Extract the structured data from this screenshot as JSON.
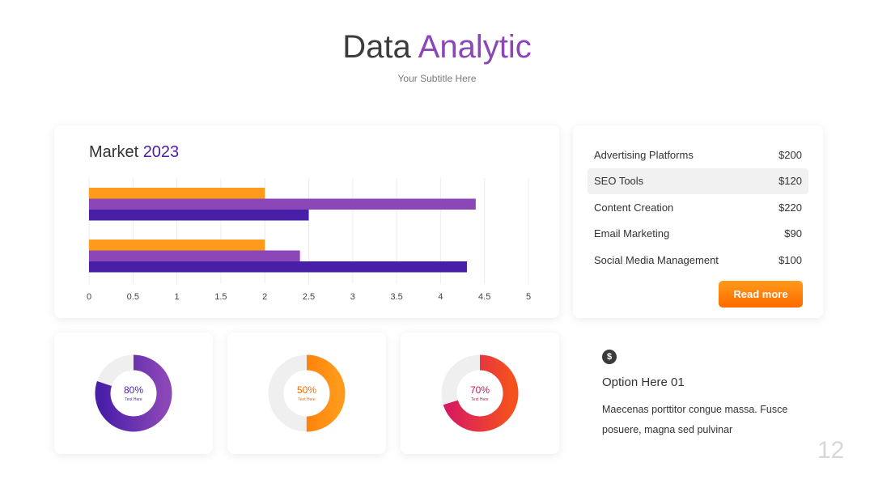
{
  "header": {
    "title_main": "Data",
    "title_accent": "Analytic",
    "subtitle": "Your Subtitle Here"
  },
  "chart": {
    "title_main": "Market",
    "title_year": "2023"
  },
  "chart_data": {
    "type": "bar",
    "orientation": "horizontal",
    "categories": [
      "",
      ""
    ],
    "series": [
      {
        "values": [
          2.0,
          2.0
        ],
        "color": "#ff9a1a"
      },
      {
        "values": [
          4.4,
          2.4
        ],
        "color": "#8b46b7"
      },
      {
        "values": [
          2.5,
          4.3
        ],
        "color": "#4a1fa8"
      }
    ],
    "xlim": [
      0,
      5
    ],
    "xticks": [
      "0",
      "0.5",
      "1",
      "1.5",
      "2",
      "2.5",
      "3",
      "3.5",
      "4",
      "4.5",
      "5"
    ],
    "grid": true,
    "legend": "none"
  },
  "prices": [
    {
      "label": "Advertising Platforms",
      "value": "$200"
    },
    {
      "label": "SEO Tools",
      "value": "$120"
    },
    {
      "label": "Content Creation",
      "value": "$220"
    },
    {
      "label": "Email Marketing",
      "value": "$90"
    },
    {
      "label": "Social Media Management",
      "value": "$100"
    }
  ],
  "read_more_label": "Read more",
  "donuts": [
    {
      "percent": 80,
      "label": "80%",
      "sub": "Text Here",
      "color_a": "#4a1fa8",
      "color_b": "#8b46b7",
      "text_color": "#4a1fa8"
    },
    {
      "percent": 50,
      "label": "50%",
      "sub": "Text Here",
      "color_a": "#ff6a00",
      "color_b": "#ff9a1a",
      "text_color": "#ff6a00"
    },
    {
      "percent": 70,
      "label": "70%",
      "sub": "Text Here",
      "color_a": "#d81b60",
      "color_b": "#f4511e",
      "text_color": "#c2185b"
    }
  ],
  "option": {
    "icon": "dollar-icon",
    "icon_glyph": "$",
    "title": "Option Here 01",
    "text": "Maecenas porttitor congue massa. Fusce posuere, magna sed pulvinar"
  },
  "page_number": "12"
}
